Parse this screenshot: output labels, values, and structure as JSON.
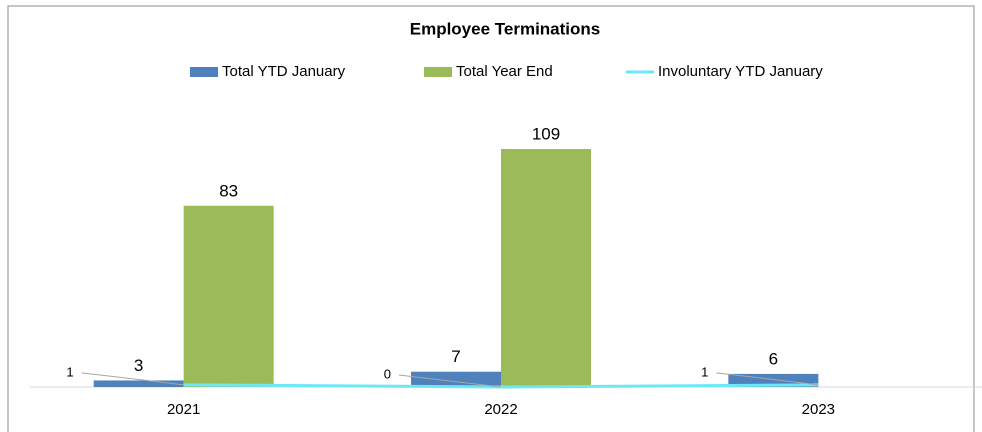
{
  "chart_data": {
    "type": "bar",
    "title": "Employee Terminations",
    "categories": [
      "2021",
      "2022",
      "2023"
    ],
    "series": [
      {
        "name": "Total YTD January",
        "color": "#4f81bd",
        "type": "bar",
        "values": [
          3,
          7,
          6
        ]
      },
      {
        "name": "Total Year End",
        "color": "#9bbb59",
        "type": "bar",
        "values": [
          83,
          109,
          null
        ]
      },
      {
        "name": "Involuntary YTD January",
        "color": "#6fe8f5",
        "type": "line",
        "values": [
          1,
          0,
          1
        ]
      }
    ],
    "legend": "top"
  }
}
